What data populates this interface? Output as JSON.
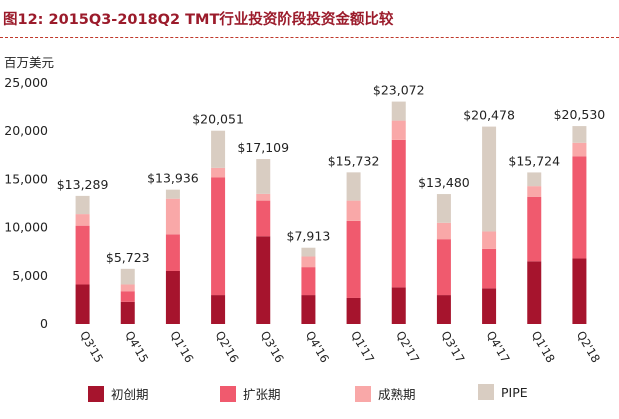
{
  "chart_data": {
    "type": "bar",
    "stacked": true,
    "title": "图12: 2015Q3-2018Q2 TMT行业投资阶段投资金额比较",
    "ylabel": "百万美元",
    "ylim": [
      0,
      25000
    ],
    "yticks": [
      "0",
      "5,000",
      "10,000",
      "15,000",
      "20,000",
      "25,000"
    ],
    "ytick_values": [
      0,
      5000,
      10000,
      15000,
      20000,
      25000
    ],
    "grid": false,
    "legend_position": "bottom",
    "categories": [
      "Q3'15",
      "Q4'15",
      "Q1'16",
      "Q2'16",
      "Q3'16",
      "Q4'16",
      "Q1'17",
      "Q2'17",
      "Q3'17",
      "Q4'17",
      "Q1'18",
      "Q2'18"
    ],
    "totals": [
      "$13,289",
      "$5,723",
      "$13,936",
      "$20,051",
      "$17,109",
      "$7,913",
      "$15,732",
      "$23,072",
      "$13,480",
      "$20,478",
      "$15,724",
      "$20,530"
    ],
    "total_values": [
      13289,
      5723,
      13936,
      20051,
      17109,
      7913,
      15732,
      23072,
      13480,
      20478,
      15724,
      20530
    ],
    "series": [
      {
        "name": "初创期",
        "color": "#a6142d",
        "values": [
          4100,
          2300,
          5500,
          3000,
          9100,
          3000,
          2700,
          3800,
          3000,
          3700,
          6500,
          6800
        ]
      },
      {
        "name": "扩张期",
        "color": "#f05a6e",
        "values": [
          6100,
          1100,
          3800,
          12200,
          3700,
          2900,
          8000,
          15300,
          5800,
          4100,
          6700,
          10600
        ]
      },
      {
        "name": "成熟期",
        "color": "#f9a8a8",
        "values": [
          1200,
          700,
          3700,
          1000,
          700,
          1100,
          2100,
          2000,
          1700,
          1800,
          1100,
          1400
        ]
      },
      {
        "name": "PIPE",
        "color": "#d9cdc2",
        "values": [
          1889,
          1623,
          936,
          3851,
          3609,
          913,
          2932,
          1972,
          2980,
          10878,
          1424,
          1730
        ]
      }
    ]
  }
}
